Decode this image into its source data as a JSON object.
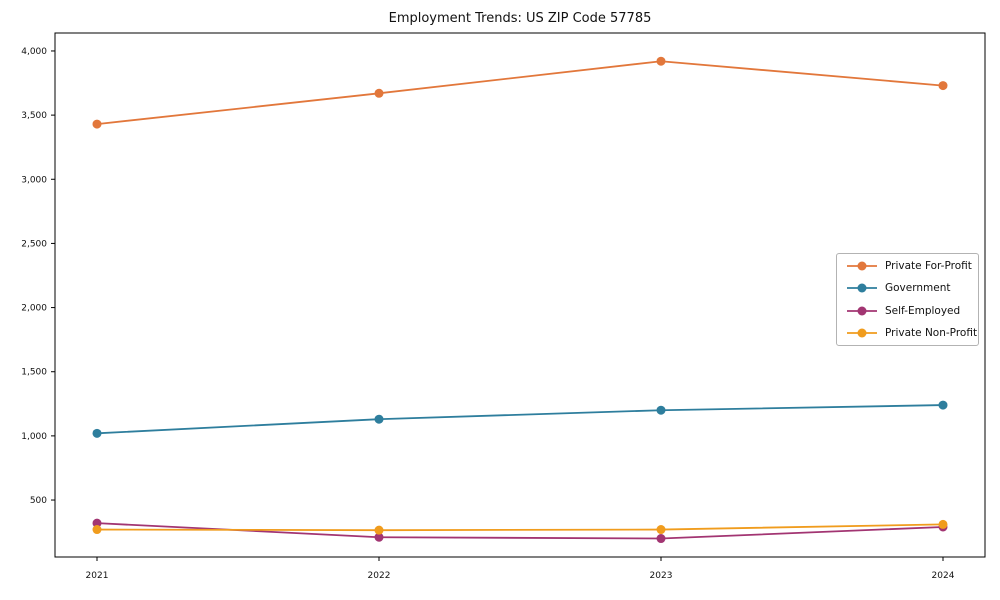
{
  "chart_data": {
    "type": "line",
    "title": "Employment Trends: US ZIP Code 57785",
    "xlabel": "",
    "ylabel": "",
    "categories": [
      "2021",
      "2022",
      "2023",
      "2024"
    ],
    "series": [
      {
        "name": "Private For-Profit",
        "color": "#e2773b",
        "values": [
          3430,
          3670,
          3920,
          3730
        ]
      },
      {
        "name": "Government",
        "color": "#2e7e9d",
        "values": [
          1020,
          1130,
          1200,
          1240
        ]
      },
      {
        "name": "Self-Employed",
        "color": "#a23572",
        "values": [
          320,
          210,
          200,
          290
        ]
      },
      {
        "name": "Private Non-Profit",
        "color": "#f09c1d",
        "values": [
          270,
          265,
          270,
          310
        ]
      }
    ],
    "yticks": [
      500,
      1000,
      1500,
      2000,
      2500,
      3000,
      3500,
      4000
    ],
    "ytick_labels": [
      "500",
      "1,000",
      "1,500",
      "2,000",
      "2,500",
      "3,000",
      "3,500",
      "4,000"
    ],
    "ylim": [
      56,
      4140
    ],
    "grid": false,
    "legend_position": "center-right",
    "marker": "circle",
    "frame": true
  }
}
